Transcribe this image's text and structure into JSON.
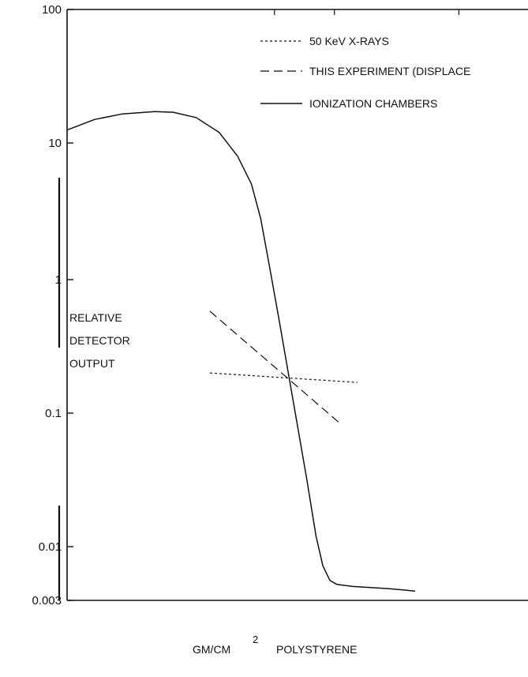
{
  "chart_data": {
    "type": "line",
    "title": "",
    "xlabel": "GM/CM",
    "xlabel_superscript": "2",
    "xlabel_suffix": "POLYSTYRENE",
    "ylabel_lines": [
      "RELATIVE",
      "DETECTOR",
      "OUTPUT"
    ],
    "yscale": "log",
    "ylim": [
      0.003,
      100
    ],
    "xlim": [
      0,
      10
    ],
    "y_ticks": [
      {
        "value": 100,
        "label": "100"
      },
      {
        "value": 10,
        "label": "10"
      },
      {
        "value": 1,
        "label": "1"
      },
      {
        "value": 0.1,
        "label": "0.1"
      },
      {
        "value": 0.01,
        "label": "0.01"
      },
      {
        "value": 0.003,
        "label": "0.003"
      }
    ],
    "x_ticks": [
      4.5,
      5.8,
      8.5
    ],
    "legend": {
      "placement": "top-right",
      "entries": [
        {
          "label": "50 KeV X-RAYS",
          "style": "dotted"
        },
        {
          "label": "THIS EXPERIMENT (DISPLACE",
          "style": "dashed"
        },
        {
          "label": "IONIZATION CHAMBERS",
          "style": "solid"
        }
      ]
    },
    "series": [
      {
        "name": "IONIZATION CHAMBERS",
        "style": "solid",
        "points": [
          [
            0.0,
            12.5
          ],
          [
            0.6,
            15.0
          ],
          [
            1.2,
            16.5
          ],
          [
            1.9,
            17.2
          ],
          [
            2.3,
            17.0
          ],
          [
            2.8,
            15.5
          ],
          [
            3.3,
            12.0
          ],
          [
            3.7,
            8.0
          ],
          [
            4.0,
            5.0
          ],
          [
            4.2,
            2.8
          ],
          [
            4.4,
            1.2
          ],
          [
            4.6,
            0.5
          ],
          [
            4.8,
            0.2
          ],
          [
            5.0,
            0.08
          ],
          [
            5.2,
            0.032
          ],
          [
            5.4,
            0.012
          ],
          [
            5.55,
            0.0065
          ],
          [
            5.7,
            0.0047
          ],
          [
            5.85,
            0.0043
          ],
          [
            6.2,
            0.0041
          ],
          [
            7.0,
            0.0039
          ],
          [
            7.55,
            0.0037
          ]
        ]
      },
      {
        "name": "THIS EXPERIMENT (DISPLACE",
        "style": "dashed",
        "points": [
          [
            3.1,
            0.58
          ],
          [
            5.9,
            0.085
          ]
        ]
      },
      {
        "name": "50 KeV X-RAYS",
        "style": "dotted",
        "points": [
          [
            3.1,
            0.2
          ],
          [
            6.3,
            0.17
          ]
        ]
      }
    ]
  }
}
